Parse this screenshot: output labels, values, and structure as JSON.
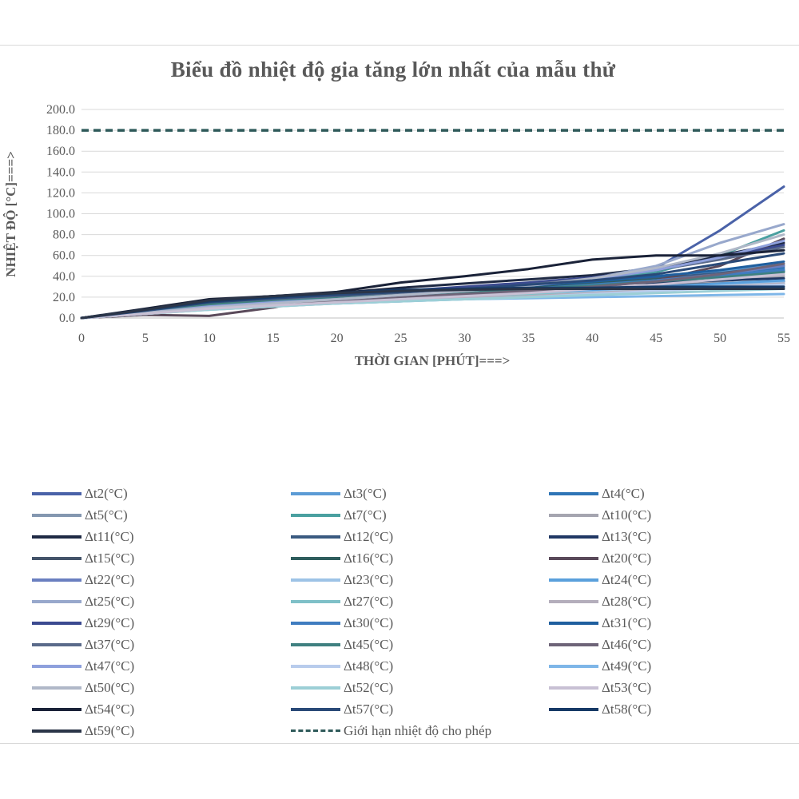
{
  "chart_data": {
    "type": "line",
    "title": "Biểu đồ nhiệt độ gia tăng lớn nhất của mẫu thử",
    "xlabel": "THỜI  GIAN  [PHÚT]===>",
    "ylabel": "NHIỆT  ĐỘ  [°C]===>",
    "xlim": [
      0,
      55
    ],
    "ylim": [
      0,
      200
    ],
    "x_ticks": [
      "0",
      "5",
      "10",
      "15",
      "20",
      "25",
      "30",
      "35",
      "40",
      "45",
      "50",
      "55"
    ],
    "y_ticks": [
      "0.0",
      "20.0",
      "40.0",
      "60.0",
      "80.0",
      "100.0",
      "120.0",
      "140.0",
      "160.0",
      "180.0",
      "200.0"
    ],
    "x": [
      0,
      5,
      10,
      15,
      20,
      25,
      30,
      35,
      40,
      45,
      50,
      55
    ],
    "grid": true,
    "legend_position": "bottom",
    "series": [
      {
        "name": "Δt2(°C)",
        "color": "#4a62a8",
        "values": [
          0,
          7,
          15,
          19,
          22,
          24,
          27,
          31,
          37,
          48,
          84,
          126
        ]
      },
      {
        "name": "Δt3(°C)",
        "color": "#5b9bd5",
        "values": [
          0,
          5,
          11,
          14,
          18,
          21,
          24,
          28,
          33,
          38,
          44,
          52
        ]
      },
      {
        "name": "Δt4(°C)",
        "color": "#2e75b6",
        "values": [
          0,
          6,
          12,
          15,
          19,
          22,
          25,
          29,
          33,
          37,
          42,
          48
        ]
      },
      {
        "name": "Δt5(°C)",
        "color": "#8497b0",
        "values": [
          0,
          5,
          10,
          13,
          17,
          20,
          23,
          27,
          31,
          36,
          41,
          46
        ]
      },
      {
        "name": "Δt7(°C)",
        "color": "#4aa0a0",
        "values": [
          0,
          6,
          12,
          16,
          19,
          22,
          26,
          30,
          35,
          44,
          60,
          84
        ]
      },
      {
        "name": "Δt10(°C)",
        "color": "#a5a5b0",
        "values": [
          0,
          4,
          9,
          12,
          15,
          18,
          21,
          24,
          27,
          31,
          35,
          40
        ]
      },
      {
        "name": "Δt11(°C)",
        "color": "#1f2a44",
        "values": [
          0,
          8,
          17,
          21,
          24,
          29,
          33,
          37,
          41,
          48,
          60,
          72
        ]
      },
      {
        "name": "Δt12(°C)",
        "color": "#3a5a80",
        "values": [
          0,
          7,
          14,
          18,
          21,
          24,
          27,
          30,
          34,
          38,
          43,
          50
        ]
      },
      {
        "name": "Δt13(°C)",
        "color": "#203864",
        "values": [
          0,
          8,
          17,
          20,
          23,
          26,
          28,
          30,
          32,
          34,
          36,
          38
        ]
      },
      {
        "name": "Δt15(°C)",
        "color": "#44546a",
        "values": [
          0,
          7,
          15,
          18,
          21,
          23,
          25,
          27,
          29,
          31,
          33,
          35
        ]
      },
      {
        "name": "Δt16(°C)",
        "color": "#2f5d5d",
        "values": [
          0,
          6,
          13,
          17,
          20,
          23,
          26,
          29,
          33,
          37,
          41,
          45
        ]
      },
      {
        "name": "Δt20(°C)",
        "color": "#5a4a5a",
        "values": [
          0,
          3,
          2,
          10,
          22,
          24,
          26,
          28,
          31,
          36,
          50,
          76
        ]
      },
      {
        "name": "Δt22(°C)",
        "color": "#6a7fc0",
        "values": [
          0,
          6,
          12,
          15,
          18,
          21,
          24,
          27,
          31,
          36,
          42,
          50
        ]
      },
      {
        "name": "Δt23(°C)",
        "color": "#9dc3e6",
        "values": [
          0,
          4,
          9,
          12,
          15,
          17,
          20,
          22,
          25,
          28,
          31,
          34
        ]
      },
      {
        "name": "Δt24(°C)",
        "color": "#5aa0dc",
        "values": [
          0,
          5,
          11,
          14,
          17,
          20,
          22,
          25,
          27,
          30,
          33,
          36
        ]
      },
      {
        "name": "Δt25(°C)",
        "color": "#98a8cc",
        "values": [
          0,
          5,
          11,
          15,
          18,
          22,
          26,
          31,
          38,
          50,
          72,
          90
        ]
      },
      {
        "name": "Δt27(°C)",
        "color": "#7fc0c8",
        "values": [
          0,
          4,
          9,
          12,
          15,
          17,
          20,
          22,
          24,
          27,
          29,
          32
        ]
      },
      {
        "name": "Δt28(°C)",
        "color": "#b4aebc",
        "values": [
          0,
          4,
          8,
          11,
          14,
          16,
          19,
          21,
          24,
          27,
          30,
          33
        ]
      },
      {
        "name": "Δt29(°C)",
        "color": "#3b4a90",
        "values": [
          0,
          7,
          15,
          19,
          22,
          26,
          30,
          34,
          39,
          46,
          58,
          70
        ]
      },
      {
        "name": "Δt30(°C)",
        "color": "#3f7cc0",
        "values": [
          0,
          6,
          12,
          16,
          19,
          22,
          25,
          28,
          32,
          36,
          41,
          46
        ]
      },
      {
        "name": "Δt31(°C)",
        "color": "#1f5f9f",
        "values": [
          0,
          7,
          14,
          18,
          21,
          24,
          27,
          31,
          35,
          40,
          46,
          54
        ]
      },
      {
        "name": "Δt37(°C)",
        "color": "#5a6a8a",
        "values": [
          0,
          6,
          13,
          17,
          20,
          24,
          28,
          32,
          38,
          46,
          56,
          68
        ]
      },
      {
        "name": "Δt45(°C)",
        "color": "#3f8080",
        "values": [
          0,
          6,
          13,
          16,
          19,
          22,
          25,
          28,
          31,
          35,
          39,
          44
        ]
      },
      {
        "name": "Δt46(°C)",
        "color": "#6e6478",
        "values": [
          0,
          5,
          11,
          14,
          17,
          20,
          23,
          26,
          30,
          35,
          42,
          52
        ]
      },
      {
        "name": "Δt47(°C)",
        "color": "#8ea0dc",
        "values": [
          0,
          5,
          11,
          15,
          18,
          22,
          26,
          31,
          37,
          46,
          58,
          74
        ]
      },
      {
        "name": "Δt48(°C)",
        "color": "#b8ccec",
        "values": [
          0,
          4,
          8,
          11,
          14,
          16,
          18,
          20,
          23,
          26,
          29,
          32
        ]
      },
      {
        "name": "Δt49(°C)",
        "color": "#7eb6e8",
        "values": [
          0,
          4,
          9,
          12,
          14,
          16,
          18,
          19,
          20,
          21,
          22,
          23
        ]
      },
      {
        "name": "Δt50(°C)",
        "color": "#b0b8c8",
        "values": [
          0,
          5,
          10,
          14,
          18,
          22,
          26,
          31,
          38,
          48,
          62,
          80
        ]
      },
      {
        "name": "Δt52(°C)",
        "color": "#9ccfd6",
        "values": [
          0,
          4,
          8,
          11,
          14,
          16,
          18,
          20,
          22,
          24,
          26,
          28
        ]
      },
      {
        "name": "Δt53(°C)",
        "color": "#c8c0d4",
        "values": [
          0,
          4,
          9,
          12,
          15,
          18,
          21,
          24,
          28,
          32,
          37,
          42
        ]
      },
      {
        "name": "Δt54(°C)",
        "color": "#1a2238",
        "values": [
          0,
          9,
          18,
          21,
          25,
          34,
          40,
          47,
          56,
          60,
          60,
          65
        ]
      },
      {
        "name": "Δt57(°C)",
        "color": "#2a4a78",
        "values": [
          0,
          7,
          15,
          19,
          22,
          25,
          28,
          32,
          36,
          42,
          52,
          62
        ]
      },
      {
        "name": "Δt58(°C)",
        "color": "#173a66",
        "values": [
          0,
          8,
          16,
          20,
          24,
          27,
          28,
          29,
          29,
          30,
          30,
          30
        ]
      },
      {
        "name": "Δt59(°C)",
        "color": "#2b3548",
        "values": [
          0,
          8,
          17,
          21,
          24,
          26,
          27,
          28,
          28,
          28,
          28,
          28
        ]
      },
      {
        "name": "Giới hạn nhiệt độ cho phép",
        "color": "#2f5a5a",
        "dashed": true,
        "values": [
          180,
          180,
          180,
          180,
          180,
          180,
          180,
          180,
          180,
          180,
          180,
          180
        ]
      }
    ]
  }
}
